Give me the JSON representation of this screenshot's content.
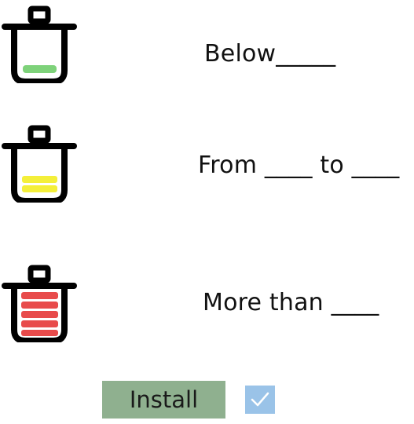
{
  "levels": [
    {
      "icon": "trash-bin-low-icon",
      "label": "Below_____",
      "fill_color": "#7ed27a",
      "filled_segments": 1
    },
    {
      "icon": "trash-bin-medium-icon",
      "label": "From ____ to ____",
      "fill_color": "#f4ef3a",
      "filled_segments": 2
    },
    {
      "icon": "trash-bin-full-icon",
      "label": "More than ____",
      "fill_color": "#e84b4b",
      "filled_segments": 5
    }
  ],
  "install_button": {
    "label": "Install",
    "color": "#8fb08f"
  },
  "checkbox": {
    "checked": true,
    "color": "#9ac3e8",
    "icon": "checkmark-icon"
  }
}
